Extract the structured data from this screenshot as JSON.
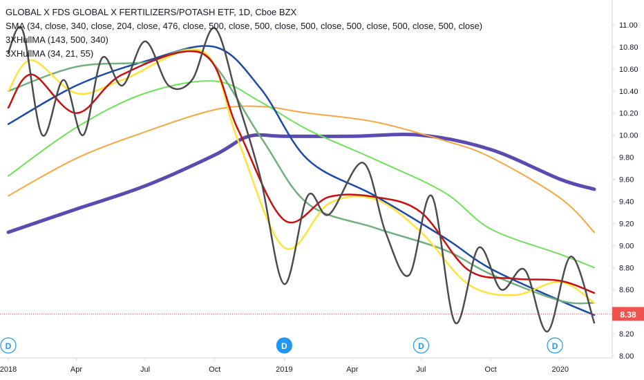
{
  "chart_data": {
    "type": "line",
    "title": "GLOBAL X FDS GLOBAL X FERTILIZERS/POTASH ETF, 1D, Cboe BZX",
    "legend_position": "top-left",
    "legend": [
      "SMA (34, close, 340, close, 204, close, 476, close, 500, close, 500, close, 500, close, 500, close, 500, close, 500, close)",
      "3XHullMA (143, 500, 340)",
      "3XHullMA (34, 21, 55)"
    ],
    "y_ticks": [
      "11.00",
      "10.80",
      "10.60",
      "10.40",
      "10.20",
      "10.00",
      "9.80",
      "9.60",
      "9.40",
      "9.20",
      "9.00",
      "8.80",
      "8.60",
      "8.38",
      "8.20",
      "8.00"
    ],
    "x_ticks": [
      "2018",
      "Apr",
      "Jul",
      "Oct",
      "2019",
      "Apr",
      "Jul",
      "Oct",
      "2020"
    ],
    "ylim": [
      8.0,
      11.1
    ],
    "grid": false,
    "last_price": {
      "label": "8.38",
      "value": 8.38,
      "color": "#ef5350"
    },
    "dividend_markers": [
      {
        "label": "D",
        "date": "2018-01",
        "style": "outline"
      },
      {
        "label": "D",
        "date": "2019-01",
        "style": "filled"
      },
      {
        "label": "D",
        "date": "2019-07",
        "style": "outline"
      },
      {
        "label": "D",
        "date": "2019-12",
        "style": "outline"
      }
    ],
    "x_date_range": [
      "2018-01-01",
      "2020-02-15"
    ],
    "series": [
      {
        "color": "#5b4ab0",
        "width": 5,
        "x": [
          "2018-01-01",
          "2018-04-01",
          "2018-07-01",
          "2018-10-01",
          "2018-11-15",
          "2019-01-01",
          "2019-04-01",
          "2019-07-01",
          "2019-10-01",
          "2020-01-01",
          "2020-02-15"
        ],
        "values": [
          9.12,
          9.33,
          9.54,
          9.82,
          9.99,
          9.99,
          9.99,
          10.0,
          9.87,
          9.6,
          9.51
        ]
      },
      {
        "color": "#f5a742",
        "width": 2,
        "x": [
          "2018-01-01",
          "2018-04-01",
          "2018-07-01",
          "2018-10-01",
          "2018-12-01",
          "2019-02-01",
          "2019-05-01",
          "2019-08-01",
          "2019-10-01",
          "2020-01-01",
          "2020-02-15"
        ],
        "values": [
          9.45,
          9.79,
          10.03,
          10.23,
          10.26,
          10.2,
          10.12,
          9.95,
          9.8,
          9.43,
          9.12
        ]
      },
      {
        "color": "#6fe05a",
        "width": 2,
        "x": [
          "2018-01-01",
          "2018-04-01",
          "2018-07-01",
          "2018-10-01",
          "2018-12-01",
          "2019-02-01",
          "2019-05-01",
          "2019-08-01",
          "2019-10-01",
          "2020-01-01",
          "2020-02-15"
        ],
        "values": [
          9.63,
          10.07,
          10.38,
          10.49,
          10.3,
          10.05,
          9.78,
          9.48,
          9.15,
          8.92,
          8.8
        ]
      },
      {
        "color": "#1c4aa8",
        "width": 2.5,
        "x": [
          "2018-01-01",
          "2018-04-01",
          "2018-07-01",
          "2018-10-01",
          "2018-12-01",
          "2019-02-01",
          "2019-05-01",
          "2019-08-01",
          "2019-10-01",
          "2020-01-01",
          "2020-02-15"
        ],
        "values": [
          10.1,
          10.45,
          10.67,
          10.8,
          10.42,
          9.78,
          9.45,
          9.07,
          8.79,
          8.5,
          8.37
        ]
      },
      {
        "color": "#6fb07e",
        "width": 2.5,
        "x": [
          "2018-01-01",
          "2018-04-01",
          "2018-07-01",
          "2018-09-15",
          "2018-12-01",
          "2019-02-01",
          "2019-05-01",
          "2019-08-01",
          "2019-10-01",
          "2020-01-01",
          "2020-02-15"
        ],
        "values": [
          10.4,
          10.62,
          10.66,
          10.74,
          9.98,
          9.38,
          9.16,
          8.96,
          8.74,
          8.5,
          8.48
        ]
      },
      {
        "color": "#ffe23a",
        "width": 2.5,
        "x": [
          "2018-01-01",
          "2018-02-01",
          "2018-04-01",
          "2018-06-01",
          "2018-09-15",
          "2018-11-01",
          "2019-01-01",
          "2019-03-01",
          "2019-05-01",
          "2019-07-01",
          "2019-09-01",
          "2019-11-01",
          "2020-01-01",
          "2020-02-15"
        ],
        "values": [
          10.4,
          10.68,
          10.38,
          10.5,
          10.76,
          9.95,
          8.98,
          9.38,
          9.42,
          9.12,
          8.65,
          8.55,
          8.67,
          8.48
        ]
      },
      {
        "color": "#c80f0f",
        "width": 2.5,
        "x": [
          "2018-01-01",
          "2018-02-01",
          "2018-04-01",
          "2018-06-01",
          "2018-09-15",
          "2018-11-01",
          "2019-01-01",
          "2019-03-01",
          "2019-05-01",
          "2019-07-01",
          "2019-09-01",
          "2019-11-01",
          "2020-01-01",
          "2020-02-15"
        ],
        "values": [
          10.25,
          10.55,
          10.2,
          10.55,
          10.74,
          10.05,
          9.23,
          9.44,
          9.44,
          9.3,
          8.78,
          8.7,
          8.68,
          8.57
        ]
      },
      {
        "color": "#4b4b4b",
        "width": 2.5,
        "x": [
          "2018-01-01",
          "2018-01-20",
          "2018-02-15",
          "2018-03-15",
          "2018-04-10",
          "2018-05-05",
          "2018-06-01",
          "2018-07-01",
          "2018-08-01",
          "2018-09-01",
          "2018-10-01",
          "2018-11-01",
          "2018-12-01",
          "2019-01-01",
          "2019-02-01",
          "2019-03-01",
          "2019-04-15",
          "2019-05-15",
          "2019-06-15",
          "2019-07-15",
          "2019-08-15",
          "2019-09-15",
          "2019-10-15",
          "2019-11-15",
          "2019-12-15",
          "2020-01-15",
          "2020-02-15"
        ],
        "values": [
          10.75,
          10.95,
          10.0,
          10.5,
          10.0,
          10.7,
          10.45,
          10.85,
          10.45,
          10.5,
          10.97,
          10.3,
          9.6,
          8.65,
          9.45,
          9.28,
          9.75,
          9.12,
          8.73,
          9.45,
          8.3,
          8.98,
          8.6,
          8.78,
          8.22,
          8.9,
          8.3
        ]
      }
    ]
  }
}
